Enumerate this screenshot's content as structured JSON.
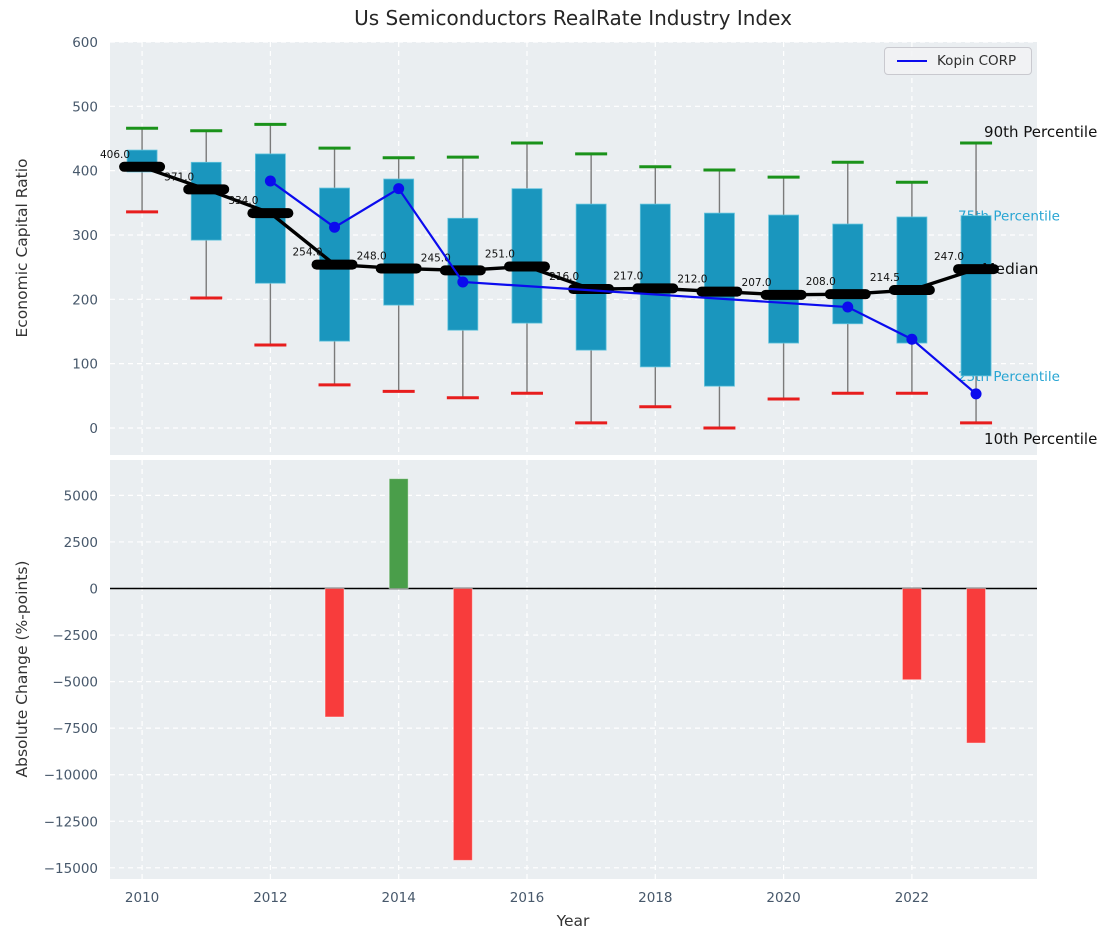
{
  "title": "Us Semiconductors RealRate Industry Index",
  "legend": {
    "label": "Kopin CORP"
  },
  "annotations": {
    "p90": "90th Percentile",
    "p75": "75th Percentile",
    "median": "Median",
    "p25": "25th Percentile",
    "p10": "10th Percentile"
  },
  "colors": {
    "plot_bg": "#eaeef1",
    "grid": "#ffffff",
    "tick_label": "#47586b",
    "title_text": "#262626",
    "annotation_text": "#111111",
    "percentile_label_cyan": "#27a5d3",
    "box": "#1a96be",
    "box_edge": "#62c3dc",
    "whisker": "#7a7a7a",
    "cap_high": "#1a921a",
    "cap_low": "#e71d1d",
    "median": "#000000",
    "kopin_line": "#0b0bee",
    "bar_positive": "#4a9e4a",
    "bar_negative": "#f83c3c",
    "zero_line": "#000000"
  },
  "chart_data": [
    {
      "type": "boxplot+line",
      "title": "Us Semiconductors RealRate Industry Index",
      "ylabel": "Economic Capital Ratio",
      "xlabel": "",
      "grid": true,
      "ylim": [
        -42,
        600
      ],
      "yticks": [
        0,
        100,
        200,
        300,
        400,
        500,
        600
      ],
      "xlim": [
        2009.5,
        2023.95
      ],
      "xticks": [
        2010,
        2012,
        2014,
        2016,
        2018,
        2020,
        2022
      ],
      "years": [
        2010,
        2011,
        2012,
        2013,
        2014,
        2015,
        2016,
        2017,
        2018,
        2019,
        2020,
        2021,
        2022,
        2023
      ],
      "p90": [
        466,
        462,
        472,
        435,
        420,
        421,
        443,
        426,
        406,
        401,
        390,
        413,
        382,
        443
      ],
      "p75": [
        432,
        413,
        426,
        373,
        387,
        326,
        372,
        348,
        348,
        334,
        331,
        317,
        328,
        330
      ],
      "median": [
        406,
        371,
        334,
        254,
        248,
        245,
        251,
        216,
        217,
        212,
        207,
        208,
        214.5,
        247
      ],
      "median_labels": [
        "406.0",
        "371.0",
        "334.0",
        "254.0",
        "248.0",
        "245.0",
        "251.0",
        "216.0",
        "217.0",
        "212.0",
        "207.0",
        "208.0",
        "214.5",
        "247.0"
      ],
      "p25": [
        398,
        292,
        225,
        135,
        191,
        152,
        163,
        121,
        95,
        65,
        132,
        162,
        132,
        81
      ],
      "p10": [
        336,
        202,
        129,
        67,
        57,
        47,
        54,
        8,
        33,
        0,
        45,
        54,
        54,
        8
      ],
      "series": [
        {
          "name": "Kopin CORP",
          "x": [
            2012,
            2013,
            2014,
            2015,
            2021,
            2022,
            2023
          ],
          "y": [
            384,
            312,
            372,
            227,
            188,
            138,
            53
          ]
        }
      ],
      "legend_position": "upper right"
    },
    {
      "type": "bar",
      "ylabel": "Absolute Change (%-points)",
      "xlabel": "Year",
      "grid": true,
      "ylim": [
        -15600,
        6900
      ],
      "yticks": [
        5000,
        2500,
        0,
        -2500,
        -5000,
        -7500,
        -10000,
        -12500,
        -15000
      ],
      "xlim": [
        2009.5,
        2023.95
      ],
      "xticks": [
        2010,
        2012,
        2014,
        2016,
        2018,
        2020,
        2022
      ],
      "x": [
        2013,
        2014,
        2015,
        2022,
        2023
      ],
      "values": [
        -6900,
        5900,
        -14600,
        -4900,
        -8300
      ]
    }
  ]
}
